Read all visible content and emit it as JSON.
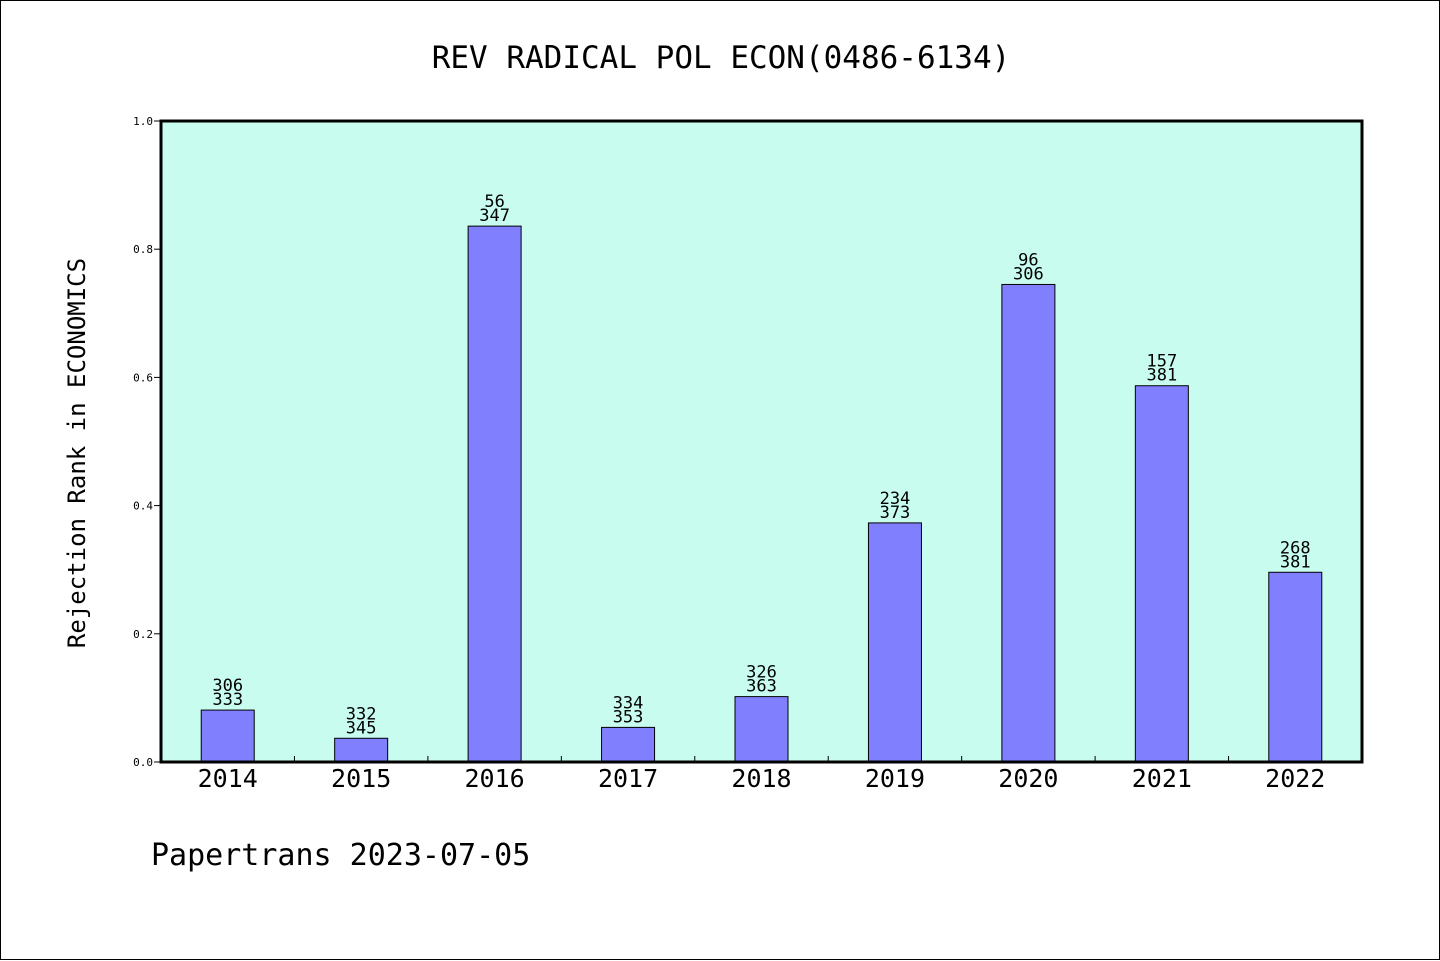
{
  "chart_data": {
    "type": "bar",
    "title": "REV RADICAL POL ECON(0486-6134)",
    "ylabel": "Rejection Rank in ECONOMICS",
    "xlabel": "",
    "footer": "Papertrans 2023-07-05",
    "categories": [
      "2014",
      "2015",
      "2016",
      "2017",
      "2018",
      "2019",
      "2020",
      "2021",
      "2022"
    ],
    "values": [
      0.081,
      0.037,
      0.836,
      0.054,
      0.102,
      0.373,
      0.745,
      0.587,
      0.296
    ],
    "label_top": [
      "306",
      "332",
      "56",
      "334",
      "326",
      "234",
      "96",
      "157",
      "268"
    ],
    "label_bottom": [
      "333",
      "345",
      "347",
      "353",
      "363",
      "373",
      "306",
      "381",
      "381"
    ],
    "ylim": [
      0,
      1.0
    ],
    "yticks": [
      "0.0",
      "0.2",
      "0.4",
      "0.6",
      "0.8",
      "1.0"
    ],
    "grid": false,
    "colors": {
      "plot_background": "#c8fcef",
      "bar_fill": "#8080ff",
      "bar_stroke": "#000000"
    }
  }
}
